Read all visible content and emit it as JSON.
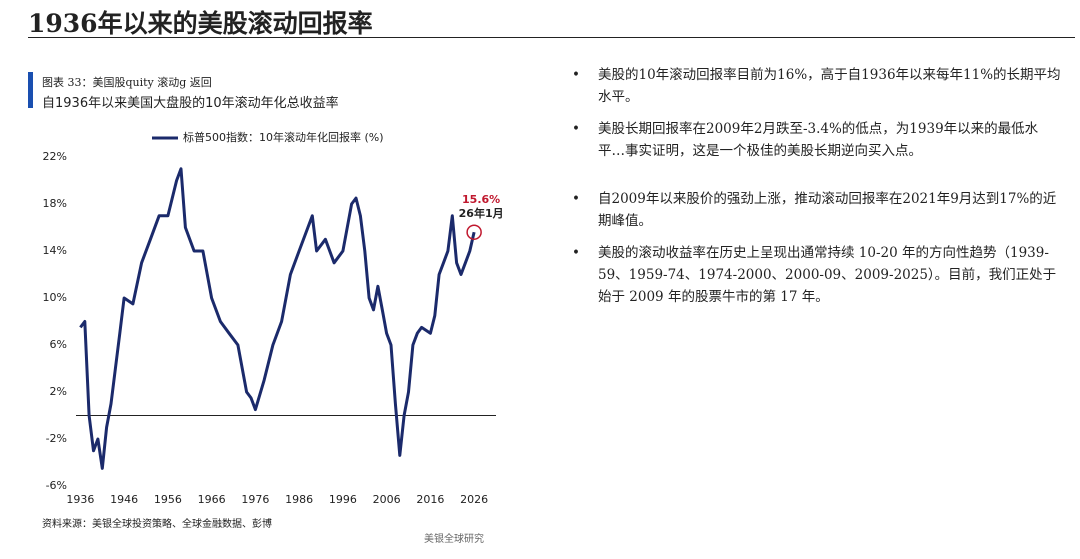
{
  "header": {
    "title": "1936年以来的美股滚动回报率"
  },
  "figure": {
    "label": "图表 33：美国股quity 滚动g 返回",
    "subtitle": "自1936年以来美国大盘股的10年滚动年化总收益率",
    "source": "资料来源：美银全球投资策略、全球金融数据、彭博"
  },
  "chart_data": {
    "type": "line",
    "x": [
      1936,
      1937,
      1938,
      1939,
      1940,
      1941,
      1942,
      1943,
      1944,
      1945,
      1946,
      1948,
      1950,
      1952,
      1954,
      1956,
      1958,
      1959,
      1960,
      1962,
      1964,
      1966,
      1968,
      1970,
      1972,
      1974,
      1975,
      1976,
      1978,
      1980,
      1982,
      1984,
      1986,
      1988,
      1989,
      1990,
      1992,
      1994,
      1996,
      1998,
      1999,
      2000,
      2001,
      2002,
      2003,
      2004,
      2005,
      2006,
      2007,
      2008,
      2009,
      2010,
      2011,
      2012,
      2013,
      2014,
      2016,
      2017,
      2018,
      2019,
      2020,
      2021,
      2022,
      2023,
      2024,
      2025,
      2026
    ],
    "series": [
      {
        "name": "标普500指数：10年滚动年化回报率 (%)",
        "color": "#1b2a6b",
        "values": [
          7.5,
          8,
          0,
          -3,
          -2,
          -4.5,
          -1,
          1,
          4,
          7,
          10,
          9.5,
          13,
          15,
          17,
          17,
          20,
          21,
          16,
          14,
          14,
          10,
          8,
          7,
          6,
          2,
          1.5,
          0.5,
          3,
          6,
          8,
          12,
          14,
          16,
          17,
          14,
          15,
          13,
          14,
          18,
          18.5,
          17,
          14,
          10,
          9,
          11,
          9,
          7,
          6,
          1,
          -3.4,
          0,
          2,
          6,
          7,
          7.5,
          7,
          8.5,
          12,
          13,
          14,
          17,
          13,
          12,
          13,
          14,
          15.6
        ]
      }
    ],
    "xlim": [
      1935,
      2031
    ],
    "ylim": [
      -6,
      22
    ],
    "xticks": [
      1936,
      1946,
      1956,
      1966,
      1976,
      1986,
      1996,
      2006,
      2016,
      2026
    ],
    "yticks": [
      {
        "value": -6,
        "label": "-6%"
      },
      {
        "value": -2,
        "label": "-2%"
      },
      {
        "value": 2,
        "label": "2%"
      },
      {
        "value": 6,
        "label": "6%"
      },
      {
        "value": 10,
        "label": "10%"
      },
      {
        "value": 14,
        "label": "14%"
      },
      {
        "value": 18,
        "label": "18%"
      },
      {
        "value": 22,
        "label": "22%"
      }
    ],
    "reference_line": 0,
    "annotation": {
      "x": 2026,
      "value": 15.6,
      "label": "15.6%",
      "date": "26年1月",
      "color": "#c0182e"
    }
  },
  "bullets": [
    "美股的10年滚动回报率目前为16%，高于自1936年以来每年11%的长期平均水平。",
    "美股长期回报率在2009年2月跌至-3.4%的低点，为1939年以来的最低水平…事实证明，这是一个极佳的美股长期逆向买入点。",
    "自2009年以来股价的强劲上涨，推动滚动回报率在2021年9月达到17%的近期峰值。",
    "美股的滚动收益率在历史上呈现出通常持续 10-20 年的方向性趋势（1939-59、1959-74、1974-2000、2000-09、2009-2025）。目前，我们正处于始于 2009 年的股票牛市的第 17 年。"
  ],
  "footer": "美银全球研究"
}
